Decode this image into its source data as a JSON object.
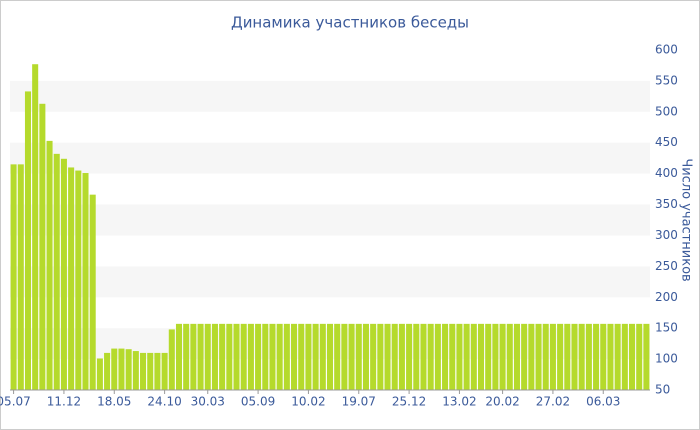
{
  "chart_data": {
    "type": "bar",
    "title": "Динамика участников беседы",
    "y_label": "Число участников",
    "categories": [
      "05.07",
      null,
      null,
      null,
      null,
      null,
      null,
      "11.12",
      null,
      null,
      null,
      null,
      null,
      null,
      "18.05",
      null,
      null,
      null,
      null,
      null,
      null,
      "24.10",
      null,
      null,
      null,
      null,
      null,
      "30.03",
      null,
      null,
      null,
      null,
      null,
      null,
      "05.09",
      null,
      null,
      null,
      null,
      null,
      null,
      "10.02",
      null,
      null,
      null,
      null,
      null,
      null,
      "19.07",
      null,
      null,
      null,
      null,
      null,
      null,
      "25.12",
      null,
      null,
      null,
      null,
      null,
      null,
      "13.02",
      null,
      null,
      null,
      null,
      null,
      "20.02",
      null,
      null,
      null,
      null,
      null,
      null,
      "27.02",
      null,
      null,
      null,
      null,
      null,
      null,
      "06.03",
      null,
      null,
      null,
      null,
      null,
      null
    ],
    "values": [
      415,
      415,
      533,
      577,
      513,
      453,
      432,
      424,
      410,
      405,
      401,
      366,
      101,
      110,
      117,
      117,
      116,
      113,
      110,
      110,
      110,
      110,
      148,
      157,
      157,
      157,
      157,
      157,
      157,
      157,
      157,
      157,
      157,
      157,
      157,
      157,
      157,
      157,
      157,
      157,
      157,
      157,
      157,
      157,
      157,
      157,
      157,
      157,
      157,
      157,
      157,
      157,
      157,
      157,
      157,
      157,
      157,
      157,
      157,
      157,
      157,
      157,
      157,
      157,
      157,
      157,
      157,
      157,
      157,
      157,
      157,
      157,
      157,
      157,
      157,
      157,
      157,
      157,
      157,
      157,
      157,
      157,
      157,
      157,
      157,
      157,
      157,
      157,
      157
    ],
    "color": "#b5da2c",
    "ylim": [
      50,
      600
    ],
    "yticks": [
      50,
      100,
      150,
      200,
      250,
      300,
      350,
      400,
      450,
      500,
      550,
      600
    ],
    "grid": "bands",
    "y_axis_side": "right"
  }
}
